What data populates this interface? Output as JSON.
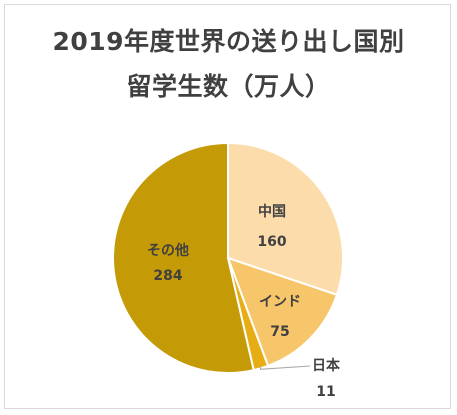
{
  "chart_data": {
    "type": "pie",
    "title": [
      "2019年度世界の送り出し国別",
      "留学生数（万人）"
    ],
    "start_angle_deg": 0,
    "direction": "clockwise",
    "slices": [
      {
        "label": "中国",
        "value": 160,
        "color": "#fcdcaa"
      },
      {
        "label": "インド",
        "value": 75,
        "color": "#f7c56a"
      },
      {
        "label": "日本",
        "value": 11,
        "color": "#e6ad14"
      },
      {
        "label": "その他",
        "value": 284,
        "color": "#c49a06"
      }
    ],
    "legend": "none"
  }
}
